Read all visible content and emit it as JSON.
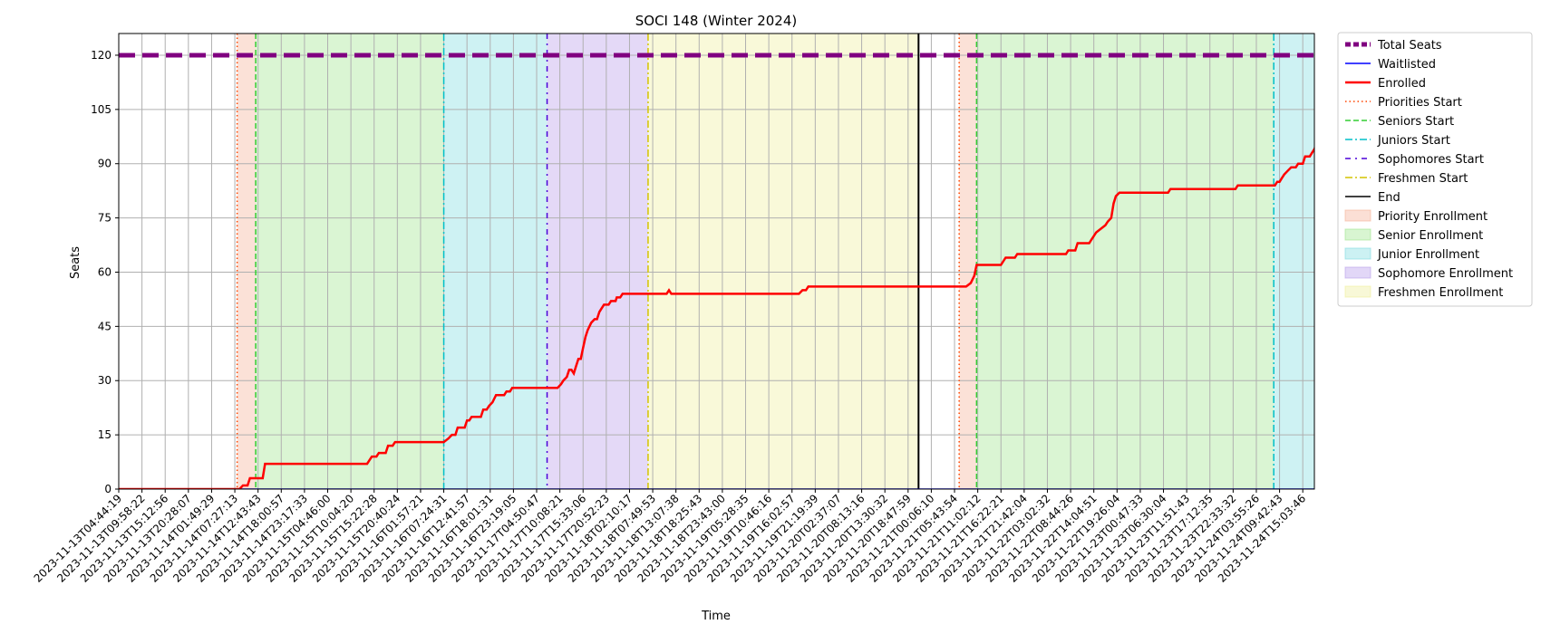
{
  "chart_data": {
    "type": "line",
    "title": "SOCI 148 (Winter 2024)",
    "xlabel": "Time",
    "ylabel": "Seats",
    "ylim": [
      0,
      126
    ],
    "yticks": [
      0,
      15,
      30,
      45,
      60,
      75,
      90,
      105,
      120
    ],
    "grid": true,
    "legend_position": "outside-right",
    "x_tick_labels": [
      "2023-11-13T04:44:19",
      "2023-11-13T09:58:22",
      "2023-11-13T15:12:56",
      "2023-11-13T20:28:07",
      "2023-11-14T01:49:29",
      "2023-11-14T07:27:13",
      "2023-11-14T12:43:43",
      "2023-11-14T18:00:57",
      "2023-11-14T23:17:33",
      "2023-11-15T04:46:00",
      "2023-11-15T10:04:20",
      "2023-11-15T15:22:28",
      "2023-11-15T20:40:24",
      "2023-11-16T01:57:21",
      "2023-11-16T07:24:31",
      "2023-11-16T12:41:57",
      "2023-11-16T18:01:31",
      "2023-11-16T23:19:05",
      "2023-11-17T04:50:47",
      "2023-11-17T10:08:21",
      "2023-11-17T15:33:06",
      "2023-11-17T20:52:23",
      "2023-11-18T02:10:17",
      "2023-11-18T07:49:53",
      "2023-11-18T13:07:38",
      "2023-11-18T18:25:43",
      "2023-11-18T23:43:00",
      "2023-11-19T05:28:35",
      "2023-11-19T10:46:16",
      "2023-11-19T16:02:57",
      "2023-11-19T21:19:39",
      "2023-11-20T02:37:07",
      "2023-11-20T08:13:16",
      "2023-11-20T13:30:32",
      "2023-11-20T18:47:59",
      "2023-11-21T00:06:10",
      "2023-11-21T05:43:54",
      "2023-11-21T11:02:12",
      "2023-11-21T16:22:21",
      "2023-11-21T21:42:04",
      "2023-11-22T03:02:32",
      "2023-11-22T08:44:26",
      "2023-11-22T14:04:51",
      "2023-11-22T19:26:04",
      "2023-11-23T00:47:33",
      "2023-11-23T06:30:04",
      "2023-11-23T11:51:43",
      "2023-11-23T17:12:35",
      "2023-11-23T22:33:32",
      "2023-11-24T03:55:26",
      "2023-11-24T09:42:43",
      "2023-11-24T15:03:46"
    ],
    "x_range": [
      0,
      51.5
    ],
    "total_seats": 120,
    "series": [
      {
        "name": "Total Seats",
        "color": "#800080",
        "style": "dashed",
        "values": [
          [
            0,
            120
          ],
          [
            51.5,
            120
          ]
        ]
      },
      {
        "name": "Waitlisted",
        "color": "#0000ff",
        "style": "solid",
        "values": [
          [
            0,
            0
          ],
          [
            51.5,
            0
          ]
        ]
      },
      {
        "name": "Enrolled",
        "color": "#ff0000",
        "style": "solid",
        "values": [
          [
            0,
            0
          ],
          [
            5.2,
            0
          ],
          [
            5.35,
            1
          ],
          [
            5.55,
            1
          ],
          [
            5.65,
            3
          ],
          [
            6.2,
            3
          ],
          [
            6.3,
            7
          ],
          [
            10.7,
            7
          ],
          [
            10.8,
            8
          ],
          [
            10.9,
            9
          ],
          [
            11.1,
            9
          ],
          [
            11.2,
            10
          ],
          [
            11.5,
            10
          ],
          [
            11.6,
            12
          ],
          [
            11.8,
            12
          ],
          [
            11.9,
            13
          ],
          [
            13.9,
            13
          ],
          [
            14.0,
            13
          ],
          [
            14.2,
            14
          ],
          [
            14.35,
            15
          ],
          [
            14.5,
            15
          ],
          [
            14.6,
            17
          ],
          [
            14.9,
            17
          ],
          [
            15.0,
            19
          ],
          [
            15.1,
            19
          ],
          [
            15.2,
            20
          ],
          [
            15.6,
            20
          ],
          [
            15.7,
            22
          ],
          [
            15.85,
            22
          ],
          [
            15.95,
            23
          ],
          [
            16.1,
            24
          ],
          [
            16.25,
            26
          ],
          [
            16.6,
            26
          ],
          [
            16.7,
            27
          ],
          [
            16.85,
            27
          ],
          [
            16.95,
            28
          ],
          [
            18.9,
            28
          ],
          [
            19.05,
            29
          ],
          [
            19.15,
            30
          ],
          [
            19.3,
            31
          ],
          [
            19.4,
            33
          ],
          [
            19.5,
            33
          ],
          [
            19.6,
            32
          ],
          [
            19.7,
            34
          ],
          [
            19.8,
            36
          ],
          [
            19.9,
            36
          ],
          [
            20.0,
            39
          ],
          [
            20.1,
            42
          ],
          [
            20.2,
            44
          ],
          [
            20.35,
            46
          ],
          [
            20.5,
            47
          ],
          [
            20.6,
            47
          ],
          [
            20.7,
            49
          ],
          [
            20.8,
            50
          ],
          [
            20.9,
            51
          ],
          [
            21.1,
            51
          ],
          [
            21.2,
            52
          ],
          [
            21.4,
            52
          ],
          [
            21.45,
            53
          ],
          [
            21.6,
            53
          ],
          [
            21.7,
            54
          ],
          [
            23.6,
            54
          ],
          [
            23.7,
            55
          ],
          [
            23.8,
            54
          ],
          [
            29.3,
            54
          ],
          [
            29.45,
            55
          ],
          [
            29.6,
            55
          ],
          [
            29.7,
            56
          ],
          [
            36.5,
            56
          ],
          [
            36.7,
            57
          ],
          [
            36.85,
            59
          ],
          [
            36.95,
            62
          ],
          [
            38.0,
            62
          ],
          [
            38.1,
            63
          ],
          [
            38.2,
            64
          ],
          [
            38.6,
            64
          ],
          [
            38.7,
            65
          ],
          [
            40.8,
            65
          ],
          [
            40.9,
            66
          ],
          [
            41.2,
            66
          ],
          [
            41.3,
            68
          ],
          [
            41.8,
            68
          ],
          [
            41.9,
            69
          ],
          [
            42.0,
            70
          ],
          [
            42.1,
            71
          ],
          [
            42.3,
            72
          ],
          [
            42.5,
            73
          ],
          [
            42.6,
            74
          ],
          [
            42.75,
            75
          ],
          [
            42.85,
            79
          ],
          [
            42.95,
            81
          ],
          [
            43.1,
            82
          ],
          [
            45.2,
            82
          ],
          [
            45.3,
            83
          ],
          [
            48.1,
            83
          ],
          [
            48.2,
            84
          ],
          [
            49.8,
            84
          ],
          [
            49.9,
            85
          ],
          [
            50.0,
            85
          ],
          [
            50.1,
            86
          ],
          [
            50.2,
            87
          ],
          [
            50.35,
            88
          ],
          [
            50.5,
            89
          ],
          [
            50.7,
            89
          ],
          [
            50.8,
            90
          ],
          [
            51.0,
            90
          ],
          [
            51.1,
            92
          ],
          [
            51.3,
            92
          ],
          [
            51.4,
            93
          ],
          [
            51.5,
            94
          ],
          [
            51.6,
            96
          ]
        ]
      }
    ],
    "phase_markers": [
      {
        "name": "Priorities Start",
        "color": "#ff4500",
        "style": "dotted",
        "x": 5.1
      },
      {
        "name": "Seniors Start",
        "color": "#32cd32",
        "style": "dashed",
        "x": 5.9
      },
      {
        "name": "Juniors Start",
        "color": "#00bfc8",
        "style": "dashdot",
        "x": 14.0
      },
      {
        "name": "Sophomores Start",
        "color": "#4b00d8",
        "style": "densedashdot",
        "x": 18.45
      },
      {
        "name": "Freshmen Start",
        "color": "#d4c400",
        "style": "dashdot",
        "x": 22.8
      },
      {
        "name": "End",
        "color": "#000000",
        "style": "solid",
        "x": 34.45
      }
    ],
    "second_cycle_markers": [
      {
        "name": "Priorities Start",
        "x": 36.2
      },
      {
        "name": "Seniors Start",
        "x": 36.95
      },
      {
        "name": "Juniors Start",
        "x": 49.75
      }
    ],
    "phase_regions": [
      {
        "name": "Priority Enrollment",
        "color": "#f5b095",
        "start": 5.1,
        "end": 5.9
      },
      {
        "name": "Senior Enrollment",
        "color": "#9ee58b",
        "start": 5.9,
        "end": 14.0
      },
      {
        "name": "Junior Enrollment",
        "color": "#7fdce0",
        "start": 14.0,
        "end": 18.45
      },
      {
        "name": "Sophomore Enrollment",
        "color": "#b79cea",
        "start": 18.45,
        "end": 22.8
      },
      {
        "name": "Freshmen Enrollment",
        "color": "#eeee9a",
        "start": 22.8,
        "end": 34.45
      },
      {
        "name": "Priority Enrollment",
        "color": "#f5b095",
        "start": 36.2,
        "end": 36.95
      },
      {
        "name": "Senior Enrollment",
        "color": "#9ee58b",
        "start": 36.95,
        "end": 49.75
      },
      {
        "name": "Junior Enrollment",
        "color": "#7fdce0",
        "start": 49.75,
        "end": 51.5
      }
    ],
    "legend": [
      {
        "label": "Total Seats",
        "kind": "line",
        "color": "#800080",
        "style": "dashed"
      },
      {
        "label": "Waitlisted",
        "kind": "line",
        "color": "#0000ff",
        "style": "solid"
      },
      {
        "label": "Enrolled",
        "kind": "line",
        "color": "#ff0000",
        "style": "solid"
      },
      {
        "label": "Priorities Start",
        "kind": "line",
        "color": "#ff4500",
        "style": "dotted"
      },
      {
        "label": "Seniors Start",
        "kind": "line",
        "color": "#32cd32",
        "style": "dashed"
      },
      {
        "label": "Juniors Start",
        "kind": "line",
        "color": "#00bfc8",
        "style": "dashdot"
      },
      {
        "label": "Sophomores Start",
        "kind": "line",
        "color": "#4b00d8",
        "style": "densedashdot"
      },
      {
        "label": "Freshmen Start",
        "kind": "line",
        "color": "#d4c400",
        "style": "dashdot"
      },
      {
        "label": "End",
        "kind": "line",
        "color": "#000000",
        "style": "solid"
      },
      {
        "label": "Priority Enrollment",
        "kind": "patch",
        "color": "#f5b095"
      },
      {
        "label": "Senior Enrollment",
        "kind": "patch",
        "color": "#9ee58b"
      },
      {
        "label": "Junior Enrollment",
        "kind": "patch",
        "color": "#7fdce0"
      },
      {
        "label": "Sophomore Enrollment",
        "kind": "patch",
        "color": "#b79cea"
      },
      {
        "label": "Freshmen Enrollment",
        "kind": "patch",
        "color": "#eeee9a"
      }
    ]
  }
}
